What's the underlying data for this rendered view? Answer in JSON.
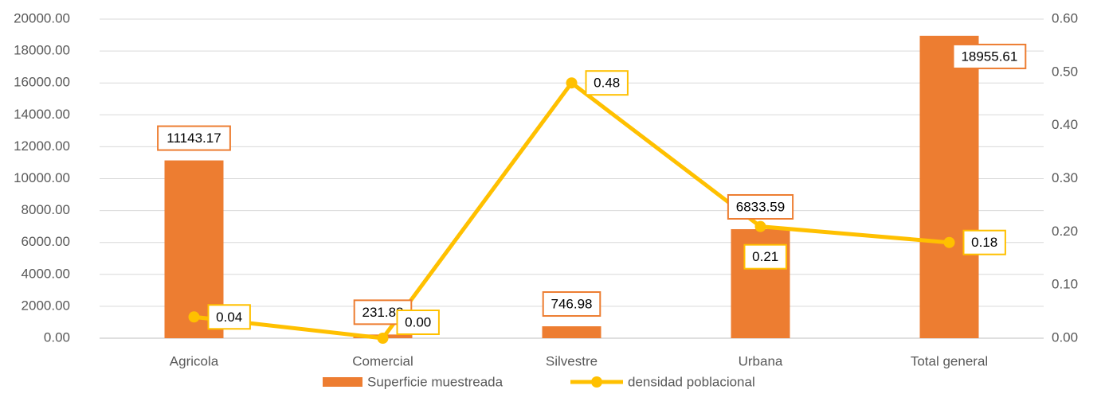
{
  "chart_data": {
    "type": "bar_line",
    "categories": [
      "Agricola",
      "Comercial",
      "Silvestre",
      "Urbana",
      "Total general"
    ],
    "series": [
      {
        "name": "Superficie muestreada",
        "type": "bar",
        "color": "#ED7D31",
        "values": [
          11143.17,
          231.88,
          746.98,
          6833.59,
          18955.61
        ]
      },
      {
        "name": "densidad poblacional",
        "type": "line",
        "axis": "y2",
        "color": "#FFC000",
        "values": [
          0.04,
          0,
          0.48,
          0.21,
          0.18
        ],
        "value_labels": [
          "0.04",
          "0.00",
          "0.48",
          "0.21",
          "0.18"
        ]
      }
    ],
    "ylim": [
      0,
      20000
    ],
    "yticks": [
      {
        "value": 0,
        "label": "0.00"
      },
      {
        "value": 2000,
        "label": "2000.00"
      },
      {
        "value": 4000,
        "label": "4000.00"
      },
      {
        "value": 6000,
        "label": "6000.00"
      },
      {
        "value": 8000,
        "label": "8000.00"
      },
      {
        "value": 10000,
        "label": "10000.00"
      },
      {
        "value": 12000,
        "label": "12000.00"
      },
      {
        "value": 14000,
        "label": "14000.00"
      },
      {
        "value": 16000,
        "label": "16000.00"
      },
      {
        "value": 18000,
        "label": "18000.00"
      },
      {
        "value": 20000,
        "label": "20000.00"
      }
    ],
    "y2lim": [
      0,
      0.6
    ],
    "y2ticks": [
      {
        "value": 0,
        "label": "0.00"
      },
      {
        "value": 0.1,
        "label": "0.10"
      },
      {
        "value": 0.2,
        "label": "0.20"
      },
      {
        "value": 0.3,
        "label": "0.30"
      },
      {
        "value": 0.4,
        "label": "0.40"
      },
      {
        "value": 0.5,
        "label": "0.50"
      },
      {
        "value": 0.6,
        "label": "0.60"
      }
    ],
    "grid": true,
    "legend": "bottom"
  }
}
